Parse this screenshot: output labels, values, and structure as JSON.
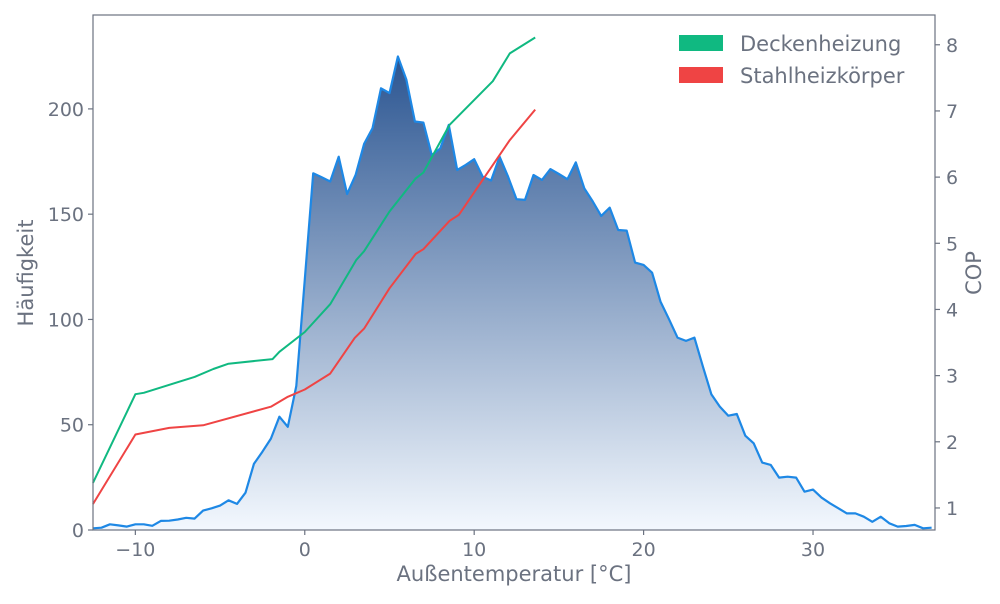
{
  "chart_data": {
    "type": "area",
    "xlabel": "Außentemperatur [°C]",
    "ylabel_left": "Häufigkeit",
    "ylabel_right": "COP",
    "xlim": [
      -12.5,
      37.2
    ],
    "ylim_left": [
      0,
      244.6
    ],
    "ylim_right": [
      0.667,
      8.45
    ],
    "x_ticks": [
      -10,
      0,
      10,
      20,
      30
    ],
    "x_tick_labels": [
      "−10",
      "0",
      "10",
      "20",
      "30"
    ],
    "y_left_ticks": [
      0,
      50,
      100,
      150,
      200
    ],
    "y_left_tick_labels": [
      "0",
      "50",
      "100",
      "150",
      "200"
    ],
    "y_right_ticks": [
      1,
      2,
      3,
      4,
      5,
      6,
      7,
      8
    ],
    "y_right_tick_labels": [
      "1",
      "2",
      "3",
      "4",
      "5",
      "6",
      "7",
      "8"
    ],
    "grid": false,
    "legend_placement": "top-right",
    "histogram": {
      "axis": "left",
      "color": "#1e88e5",
      "fill_top": "#2b5591",
      "fill_bottom": "#f3f8fe",
      "x_start": -12.5,
      "x_step": 0.5,
      "values": [
        0.8,
        1.1,
        2.7,
        2.2,
        1.6,
        2.7,
        2.7,
        2.0,
        4.3,
        4.4,
        5.0,
        5.8,
        5.4,
        9.2,
        10.3,
        11.6,
        14.1,
        12.4,
        17.7,
        31.4,
        37.2,
        43.4,
        53.8,
        49.0,
        68.4,
        119.0,
        169.4,
        167.5,
        165.5,
        177.3,
        159.6,
        168.6,
        183.4,
        190.8,
        209.8,
        207.5,
        224.9,
        213.8,
        194.0,
        193.5,
        178.0,
        181.3,
        192.4,
        171.0,
        173.4,
        176.1,
        167.8,
        166.0,
        177.3,
        167.8,
        157.1,
        156.8,
        168.6,
        166.3,
        171.4,
        169.1,
        166.6,
        174.6,
        162.3,
        156.0,
        149.2,
        153.1,
        142.5,
        142.2,
        127.0,
        125.9,
        122.2,
        108.5,
        100.1,
        91.4,
        89.8,
        91.4,
        77.6,
        64.4,
        58.6,
        54.3,
        55.1,
        44.8,
        41.2,
        32.0,
        30.9,
        24.9,
        25.3,
        24.9,
        18.2,
        19.2,
        15.4,
        12.7,
        10.3,
        7.9,
        7.9,
        6.3,
        3.9,
        6.3,
        3.2,
        1.6,
        1.9,
        2.4,
        0.8,
        1.1
      ]
    },
    "series": [
      {
        "name": "Deckenheizung",
        "axis": "right",
        "color": "#10b981",
        "x": [
          -12.5,
          -10.0,
          -9.5,
          -6.5,
          -5.4,
          -4.5,
          -1.9,
          -1.5,
          0,
          1.5,
          3.05,
          3.5,
          5.0,
          6.55,
          7.0,
          8.55,
          11.1,
          12.1,
          13.6
        ],
        "y": [
          1.38,
          2.72,
          2.74,
          2.98,
          3.1,
          3.18,
          3.25,
          3.36,
          3.66,
          4.08,
          4.75,
          4.88,
          5.48,
          5.98,
          6.07,
          6.79,
          7.45,
          7.87,
          8.11
        ]
      },
      {
        "name": "Stahlheizkörper",
        "axis": "right",
        "color": "#ef4444",
        "x": [
          -12.5,
          -10.0,
          -8.0,
          -6.0,
          -2.0,
          -1.0,
          0,
          1.5,
          2.95,
          3.5,
          5.0,
          6.55,
          7.0,
          8.55,
          9.1,
          12.1,
          13.6
        ],
        "y": [
          1.06,
          2.11,
          2.21,
          2.25,
          2.53,
          2.68,
          2.79,
          3.03,
          3.57,
          3.71,
          4.32,
          4.84,
          4.91,
          5.34,
          5.43,
          6.56,
          7.02
        ]
      }
    ]
  }
}
